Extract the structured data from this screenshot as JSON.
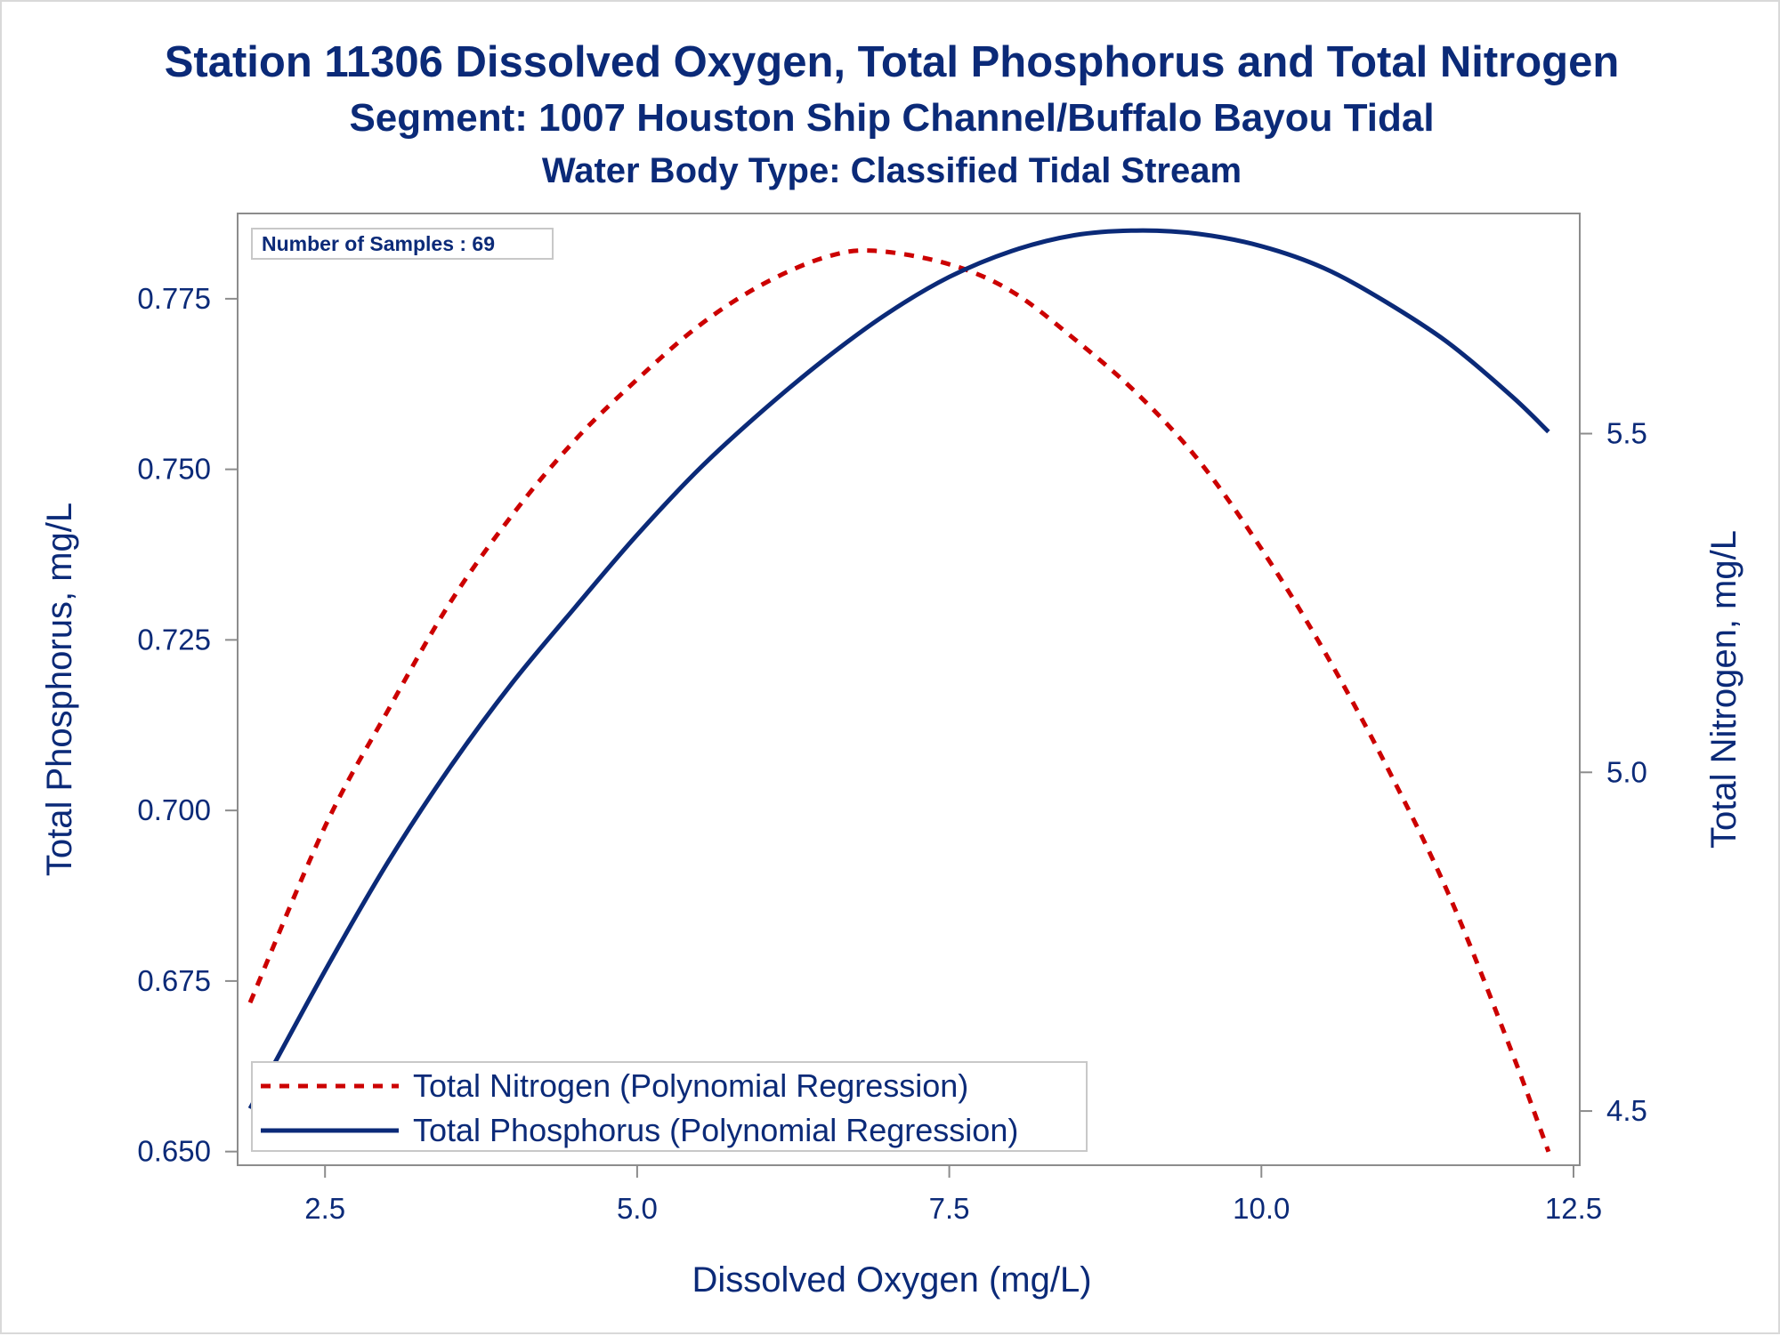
{
  "titles": {
    "line1": "Station 11306  Dissolved Oxygen, Total Phosphorus and Total Nitrogen",
    "line2": "Segment: 1007  Houston Ship Channel/Buffalo Bayou Tidal",
    "line3": "Water Body Type: Classified Tidal Stream"
  },
  "inset_label": "Number of Samples : 69",
  "colors": {
    "text": "#0b2a78",
    "phosphorus": "#0b2a78",
    "nitrogen": "#cc0000",
    "axis": "#8c8c8c"
  },
  "chart_data": {
    "type": "line",
    "xlabel": "Dissolved Oxygen (mg/L)",
    "ylabel": "Total Phosphorus, mg/L",
    "y2label": "Total Nitrogen, mg/L",
    "xlim": [
      1.8,
      12.55
    ],
    "ylim": [
      0.648,
      0.7875
    ],
    "y2lim": [
      4.42,
      5.825
    ],
    "xticks": [
      "2.5",
      "5.0",
      "7.5",
      "10.0",
      "12.5"
    ],
    "yticks": [
      "0.650",
      "0.675",
      "0.700",
      "0.725",
      "0.750",
      "0.775"
    ],
    "y2ticks": [
      "4.5",
      "5.0",
      "5.5"
    ],
    "grid": false,
    "legend_position": "bottom-left",
    "series": [
      {
        "name": "Total Nitrogen (Polynomial Regression)",
        "axis": "right",
        "style": "dashed",
        "color": "#cc0000",
        "x": [
          1.9,
          2.5,
          3.0,
          3.5,
          4.0,
          4.5,
          5.0,
          5.5,
          6.0,
          6.5,
          6.9,
          7.5,
          8.0,
          8.5,
          9.0,
          9.5,
          10.0,
          10.5,
          11.0,
          11.5,
          12.0,
          12.3
        ],
        "y": [
          4.66,
          4.92,
          5.09,
          5.25,
          5.38,
          5.49,
          5.58,
          5.66,
          5.72,
          5.76,
          5.77,
          5.75,
          5.71,
          5.64,
          5.56,
          5.46,
          5.33,
          5.18,
          5.01,
          4.82,
          4.59,
          4.44
        ]
      },
      {
        "name": "Total Phosphorus (Polynomial Regression)",
        "axis": "left",
        "style": "solid",
        "color": "#0b2a78",
        "x": [
          1.9,
          2.5,
          3.0,
          3.5,
          4.0,
          4.5,
          5.0,
          5.5,
          6.0,
          6.5,
          7.0,
          7.5,
          8.0,
          8.5,
          9.0,
          9.5,
          10.0,
          10.5,
          11.0,
          11.5,
          12.0,
          12.3
        ],
        "y": [
          0.6563,
          0.6765,
          0.6923,
          0.7063,
          0.7187,
          0.7297,
          0.7404,
          0.7501,
          0.7585,
          0.7661,
          0.7728,
          0.7782,
          0.782,
          0.7843,
          0.785,
          0.7845,
          0.7827,
          0.7795,
          0.7745,
          0.7685,
          0.7608,
          0.7555
        ]
      }
    ]
  }
}
